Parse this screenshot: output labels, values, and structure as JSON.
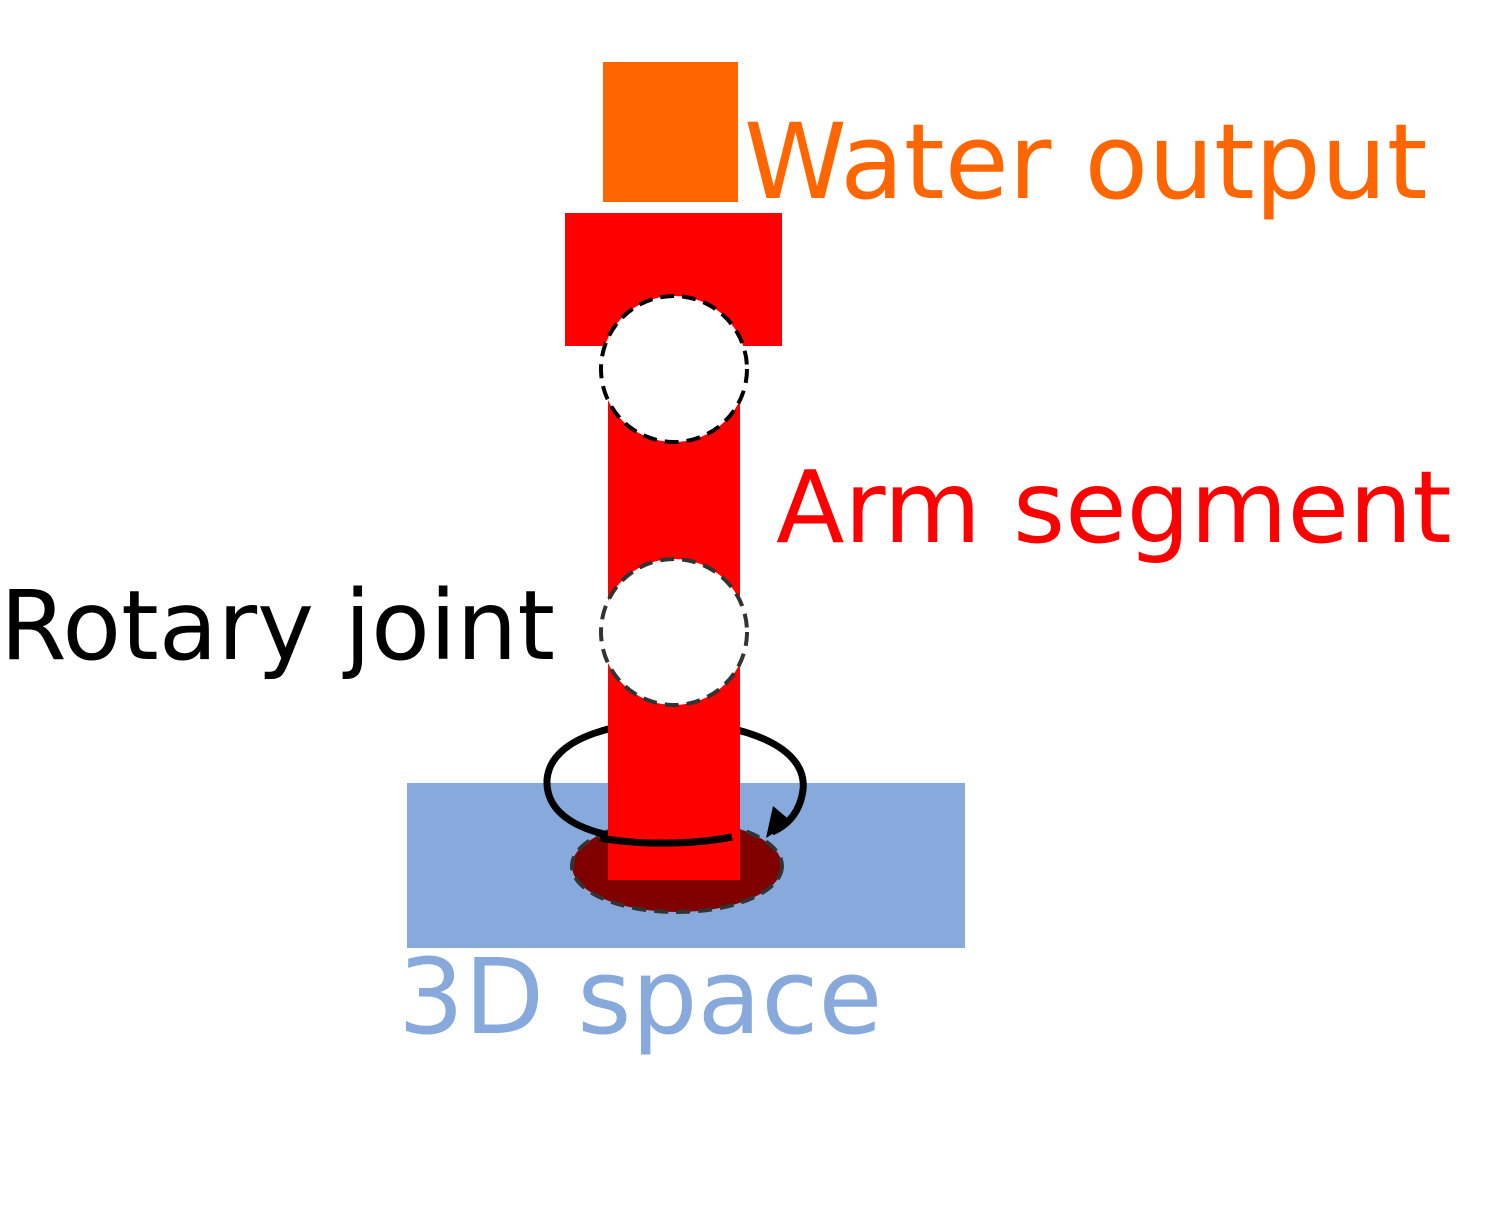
{
  "labels": {
    "water_output": "Water output",
    "arm_segment": "Arm segment",
    "rotary_joint": "Rotary joint",
    "space": "3D space"
  },
  "colors": {
    "water_output": "#ff6600",
    "arm_segment": "#ff0000",
    "rotary_joint": "#000000",
    "space": "#87a9dc",
    "base_joint": "#800000"
  },
  "icons": {
    "rotation": "circular-arrow-icon"
  }
}
